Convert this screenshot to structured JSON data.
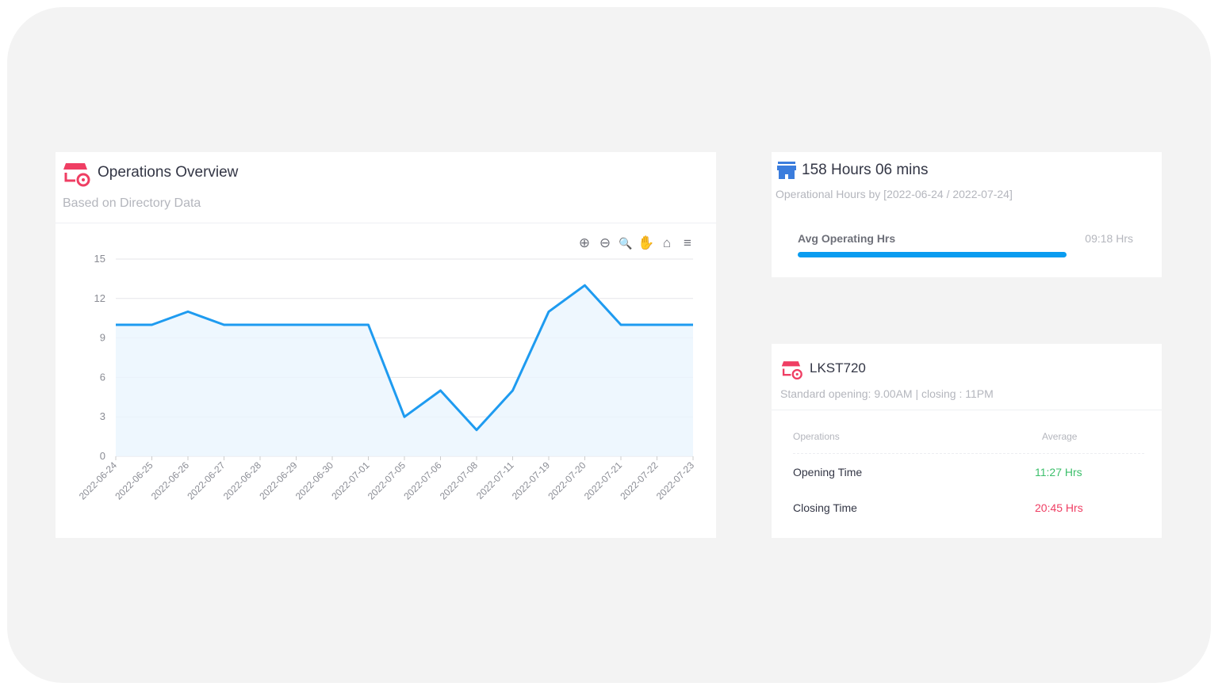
{
  "overview": {
    "title": "Operations Overview",
    "subtitle": "Based on Directory Data",
    "toolbar": [
      {
        "name": "zoom-in-icon",
        "glyph": "⊕"
      },
      {
        "name": "zoom-out-icon",
        "glyph": "⊖"
      },
      {
        "name": "selection-zoom-icon",
        "glyph": "🔍"
      },
      {
        "name": "pan-icon",
        "glyph": "✋"
      },
      {
        "name": "reset-home-icon",
        "glyph": "⌂"
      },
      {
        "name": "menu-icon",
        "glyph": "≡"
      }
    ]
  },
  "chart_data": {
    "type": "area",
    "x": [
      "2022-06-24",
      "2022-06-25",
      "2022-06-26",
      "2022-06-27",
      "2022-06-28",
      "2022-06-29",
      "2022-06-30",
      "2022-07-01",
      "2022-07-05",
      "2022-07-06",
      "2022-07-08",
      "2022-07-11",
      "2022-07-19",
      "2022-07-20",
      "2022-07-21",
      "2022-07-22",
      "2022-07-23"
    ],
    "values": [
      10,
      10,
      11,
      10,
      10,
      10,
      10,
      10,
      3,
      5,
      2,
      5,
      11,
      13,
      10,
      10,
      10
    ],
    "yticks": [
      "0",
      "3",
      "6",
      "9",
      "12",
      "15"
    ],
    "ylim": [
      0,
      15
    ],
    "grid": true,
    "color": "#1e9bf0"
  },
  "hours": {
    "title": "158 Hours 06 mins",
    "subtitle": "Operational Hours by [2022-06-24 / 2022-07-24]",
    "bar_label": "Avg Operating Hrs",
    "bar_value": "09:18 Hrs",
    "bar_percent": 80,
    "color": "#0a9cf0"
  },
  "store": {
    "title": "LKST720",
    "subtitle": "Standard opening: 9.00AM | closing : 11PM",
    "headers": [
      "Operations",
      "Average"
    ],
    "rows": [
      {
        "label": "Opening Time",
        "value": "11:27 Hrs",
        "color": "#3cbf6b"
      },
      {
        "label": "Closing Time",
        "value": "20:45 Hrs",
        "color": "#ef3e63"
      }
    ]
  }
}
